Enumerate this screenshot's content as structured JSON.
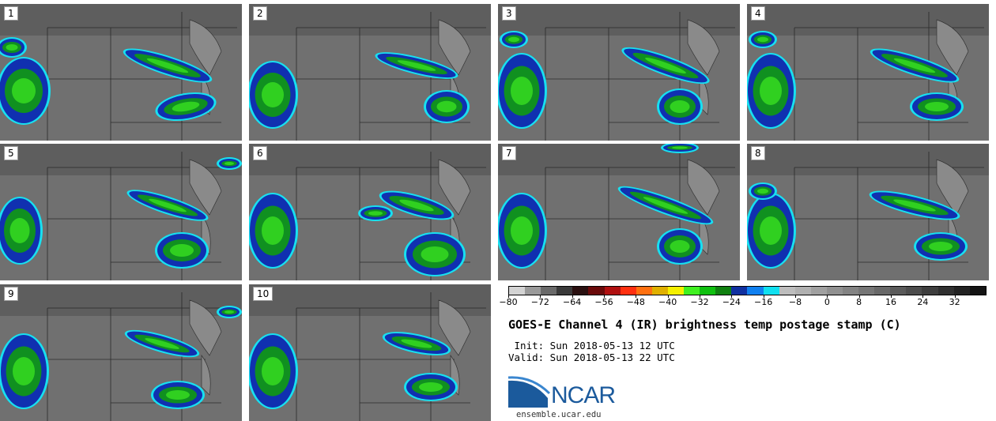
{
  "panels": [
    "1",
    "2",
    "3",
    "4",
    "5",
    "6",
    "7",
    "8",
    "9",
    "10"
  ],
  "colorbar": {
    "colors": [
      "#d3d3d3",
      "#9a9a9a",
      "#6a6a6a",
      "#3a3a3a",
      "#2a1010",
      "#6a0a0a",
      "#b01010",
      "#ff3010",
      "#ff7010",
      "#e0b000",
      "#f5f000",
      "#40f020",
      "#10c010",
      "#108010",
      "#1030a0",
      "#1080f0",
      "#10e0f0",
      "#bdbdbd",
      "#b0b0b0",
      "#a0a0a0",
      "#909090",
      "#838383",
      "#767676",
      "#686868",
      "#5a5a5a",
      "#4c4c4c",
      "#3e3e3e",
      "#303030",
      "#222222",
      "#141414"
    ],
    "tick_values": [
      -80,
      -72,
      -64,
      -56,
      -48,
      -40,
      -32,
      -24,
      -16,
      -8,
      0,
      8,
      16,
      24,
      32
    ],
    "range": [
      -80,
      40
    ]
  },
  "title": "GOES-E Channel 4 (IR) brightness temp postage stamp (C)",
  "init": " Init: Sun 2018-05-13 12 UTC",
  "valid": "Valid: Sun 2018-05-13 22 UTC",
  "logo": {
    "name": "NCAR",
    "url": "ensemble.ucar.edu",
    "icon": "ncar-logo-icon"
  }
}
